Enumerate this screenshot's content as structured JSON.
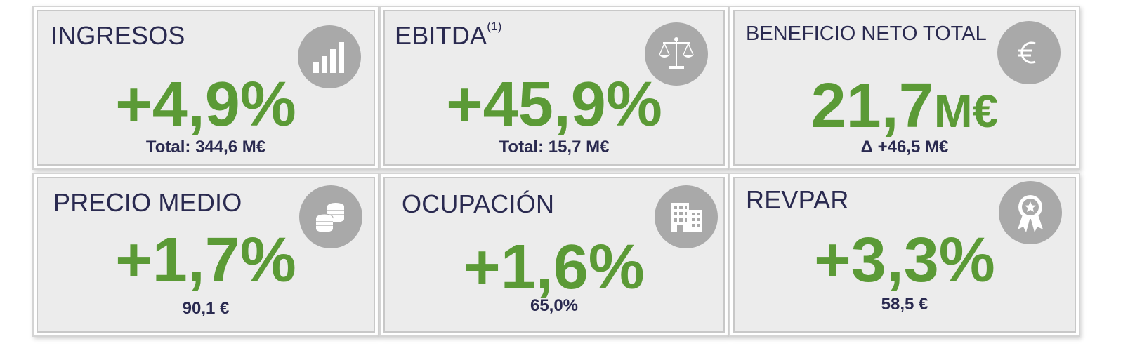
{
  "cards": [
    {
      "title": "INGRESOS",
      "value": "+4,9%",
      "sub": "Total: 344,6 M€",
      "icon": "bar-chart-icon"
    },
    {
      "title": "EBITDA",
      "title_sup": "(1)",
      "value": "+45,9%",
      "sub": "Total: 15,7 M€",
      "icon": "scale-icon"
    },
    {
      "title": "BENEFICIO NETO TOTAL",
      "value_number": "21,7",
      "value_unit": "M€",
      "sub": "Δ +46,5 M€",
      "icon": "euro-icon"
    },
    {
      "title": "PRECIO MEDIO",
      "value": "+1,7%",
      "sub": "90,1 €",
      "icon": "coins-icon"
    },
    {
      "title": "OCUPACIÓN",
      "value": "+1,6%",
      "sub": "65,0%",
      "icon": "building-icon"
    },
    {
      "title": "REVPAR",
      "value": "+3,3%",
      "sub": "58,5 €",
      "icon": "award-ribbon-icon"
    }
  ],
  "colors": {
    "value_green": "#5b9a36",
    "title_navy": "#2a2a50",
    "card_bg": "#ececec",
    "icon_gray": "#a9a9a9"
  }
}
